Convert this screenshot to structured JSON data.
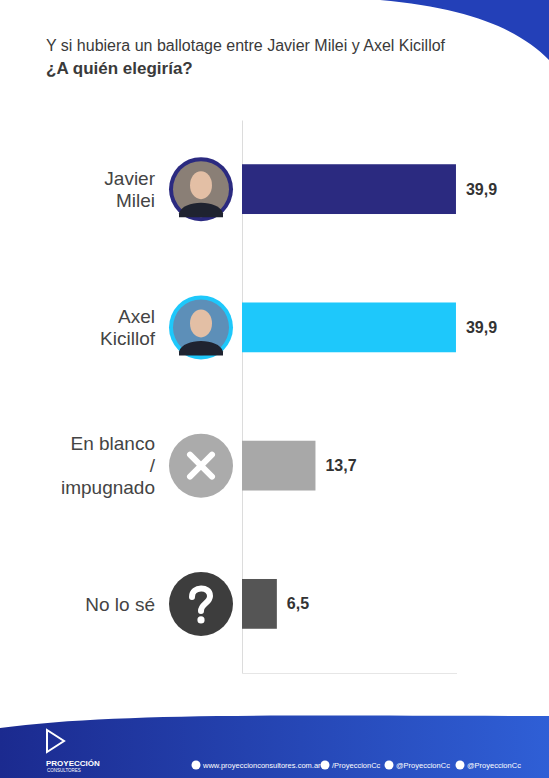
{
  "chart_data": {
    "type": "bar",
    "orientation": "horizontal",
    "title": "Y si hubiera un ballotage entre Javier Milei y Axel Kicillof",
    "subtitle": "¿A quién elegiría?",
    "categories": [
      "Javier Milei",
      "Axel Kicillof",
      "En blanco / impugnado",
      "No lo sé"
    ],
    "values": [
      39.9,
      39.9,
      13.7,
      6.5
    ],
    "value_labels": [
      "39,9",
      "39,9",
      "13,7",
      "6,5"
    ],
    "colors": [
      "#2b2a80",
      "#1ec8fb",
      "#a8a8a8",
      "#555555"
    ],
    "xlim": [
      0,
      40
    ],
    "xticks": [],
    "data_labels": true,
    "tick_labels": false,
    "grid": false
  },
  "footer": {
    "logo": [
      "PROYECCIÓN",
      "CONSULTORES"
    ],
    "links": [
      "www.proyeccionconsultores.com.ar",
      "/ProyeccionCc",
      "@ProyeccionCc",
      "@ProyeccionCc"
    ]
  }
}
